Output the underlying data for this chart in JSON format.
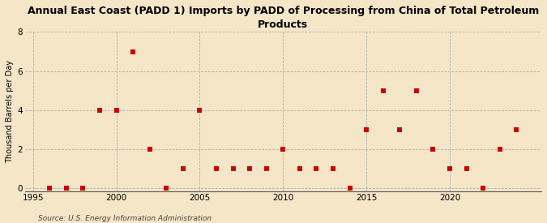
{
  "title": "Annual East Coast (PADD 1) Imports by PADD of Processing from China of Total Petroleum\nProducts",
  "ylabel": "Thousand Barrels per Day",
  "source": "Source: U.S. Energy Information Administration",
  "background_color": "#f5e6c8",
  "plot_bg_color": "#f5e6c8",
  "marker_color": "#cc0000",
  "marker_size": 4.5,
  "xlim": [
    1994.5,
    2025.5
  ],
  "ylim": [
    -0.15,
    8
  ],
  "xticks": [
    1995,
    2000,
    2005,
    2010,
    2015,
    2020
  ],
  "yticks": [
    0,
    2,
    4,
    6,
    8
  ],
  "years": [
    1996,
    1997,
    1998,
    1999,
    2000,
    2001,
    2002,
    2003,
    2004,
    2005,
    2006,
    2007,
    2008,
    2009,
    2010,
    2011,
    2012,
    2013,
    2014,
    2015,
    2016,
    2017,
    2018,
    2019,
    2020,
    2021,
    2022,
    2023,
    2024
  ],
  "values": [
    0,
    0,
    0,
    4,
    4,
    7,
    2,
    0,
    1,
    4,
    1,
    1,
    1,
    1,
    2,
    1,
    1,
    1,
    0,
    3,
    5,
    3,
    5,
    2,
    1,
    1,
    0,
    2,
    3
  ],
  "title_fontsize": 9,
  "ylabel_fontsize": 7,
  "tick_fontsize": 7.5,
  "source_fontsize": 6.5
}
